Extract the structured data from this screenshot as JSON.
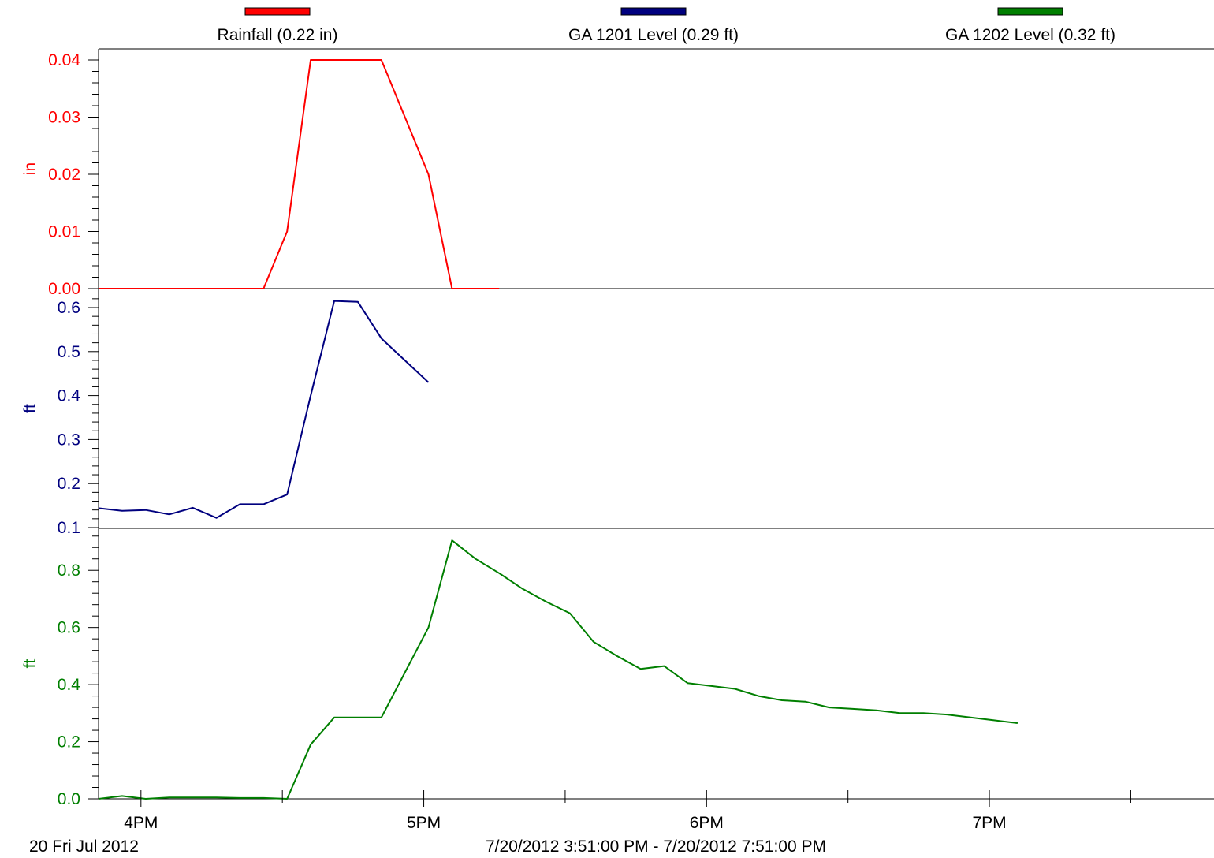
{
  "chart_data": {
    "type": "line",
    "time_axis": {
      "ticks": [
        "4PM",
        "5PM",
        "6PM",
        "7PM"
      ],
      "start": "7/20/2012 3:51:00 PM",
      "end": "7/20/2012 7:51:00 PM",
      "date_label": "20 Fri Jul 2012",
      "range_label": "7/20/2012 3:51:00 PM - 7/20/2012 7:51:00 PM"
    },
    "legend": [
      {
        "label": "Rainfall (0.22 in)",
        "color": "#ff0000"
      },
      {
        "label": "GA 1201 Level (0.29 ft)",
        "color": "#00007f"
      },
      {
        "label": "GA 1202 Level (0.32 ft)",
        "color": "#007f00"
      }
    ],
    "panels": [
      {
        "series_name": "Rainfall (0.22 in)",
        "unit": "in",
        "color": "#ff0000",
        "ylim": [
          0,
          0.04
        ],
        "yticks": [
          "0.00",
          "0.01",
          "0.02",
          "0.03",
          "0.04"
        ],
        "points": [
          [
            "3:51 PM",
            0
          ],
          [
            "4:26 PM",
            0
          ],
          [
            "4:31 PM",
            0.01
          ],
          [
            "4:36 PM",
            0.04
          ],
          [
            "4:51 PM",
            0.04
          ],
          [
            "5:01 PM",
            0.02
          ],
          [
            "5:06 PM",
            0
          ],
          [
            "5:16 PM",
            0
          ]
        ]
      },
      {
        "series_name": "GA 1201 Level (0.29 ft)",
        "unit": "ft",
        "color": "#00007f",
        "ylim": [
          0.1,
          0.6
        ],
        "yticks": [
          "0.1",
          "0.2",
          "0.3",
          "0.4",
          "0.5",
          "0.6"
        ],
        "points": [
          [
            "3:51 PM",
            0.144
          ],
          [
            "3:56 PM",
            0.138
          ],
          [
            "4:01 PM",
            0.14
          ],
          [
            "4:06 PM",
            0.13
          ],
          [
            "4:11 PM",
            0.145
          ],
          [
            "4:16 PM",
            0.122
          ],
          [
            "4:21 PM",
            0.153
          ],
          [
            "4:26 PM",
            0.153
          ],
          [
            "4:31 PM",
            0.175
          ],
          [
            "4:36 PM",
            0.4
          ],
          [
            "4:41 PM",
            0.615
          ],
          [
            "4:46 PM",
            0.613
          ],
          [
            "4:51 PM",
            0.53
          ],
          [
            "4:56 PM",
            0.48
          ],
          [
            "5:01 PM",
            0.43
          ]
        ]
      },
      {
        "series_name": "GA 1202 Level (0.32 ft)",
        "unit": "ft",
        "color": "#007f00",
        "ylim": [
          0,
          0.9
        ],
        "yticks": [
          "0.0",
          "0.2",
          "0.4",
          "0.6",
          "0.8"
        ],
        "points": [
          [
            "3:51 PM",
            0
          ],
          [
            "3:56 PM",
            0.01
          ],
          [
            "4:01 PM",
            0
          ],
          [
            "4:06 PM",
            0.005
          ],
          [
            "4:11 PM",
            0.005
          ],
          [
            "4:16 PM",
            0.005
          ],
          [
            "4:21 PM",
            0.003
          ],
          [
            "4:26 PM",
            0.003
          ],
          [
            "4:31 PM",
            0.0
          ],
          [
            "4:36 PM",
            0.19
          ],
          [
            "4:41 PM",
            0.285
          ],
          [
            "4:51 PM",
            0.285
          ],
          [
            "5:01 PM",
            0.6
          ],
          [
            "5:06 PM",
            0.905
          ],
          [
            "5:11 PM",
            0.84
          ],
          [
            "5:16 PM",
            0.79
          ],
          [
            "5:21 PM",
            0.735
          ],
          [
            "5:26 PM",
            0.69
          ],
          [
            "5:31 PM",
            0.65
          ],
          [
            "5:36 PM",
            0.55
          ],
          [
            "5:41 PM",
            0.5
          ],
          [
            "5:46 PM",
            0.455
          ],
          [
            "5:51 PM",
            0.465
          ],
          [
            "5:56 PM",
            0.405
          ],
          [
            "6:01 PM",
            0.395
          ],
          [
            "6:06 PM",
            0.385
          ],
          [
            "6:11 PM",
            0.36
          ],
          [
            "6:16 PM",
            0.345
          ],
          [
            "6:21 PM",
            0.34
          ],
          [
            "6:26 PM",
            0.32
          ],
          [
            "6:31 PM",
            0.315
          ],
          [
            "6:36 PM",
            0.31
          ],
          [
            "6:41 PM",
            0.3
          ],
          [
            "6:46 PM",
            0.3
          ],
          [
            "6:51 PM",
            0.295
          ],
          [
            "6:56 PM",
            0.285
          ],
          [
            "7:01 PM",
            0.275
          ],
          [
            "7:06 PM",
            0.265
          ]
        ]
      }
    ]
  }
}
